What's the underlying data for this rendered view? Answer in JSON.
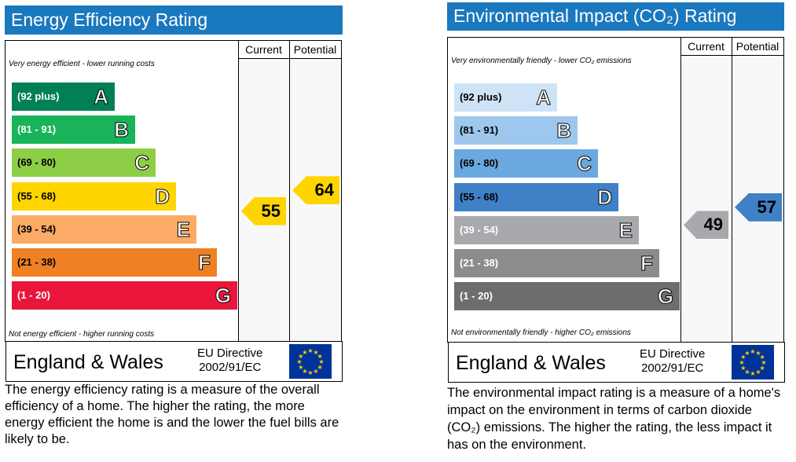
{
  "chart_data": [
    {
      "type": "bar",
      "title": "Energy Efficiency Rating",
      "column_headers": [
        "Current",
        "Potential"
      ],
      "top_note": "Very energy efficient - lower running costs",
      "bottom_note": "Not energy efficient - higher running costs",
      "bands": [
        {
          "range": "(92 plus)",
          "letter": "A",
          "color": "#008054"
        },
        {
          "range": "(81 - 91)",
          "letter": "B",
          "color": "#19b459"
        },
        {
          "range": "(69 - 80)",
          "letter": "C",
          "color": "#8dce46"
        },
        {
          "range": "(55 - 68)",
          "letter": "D",
          "color": "#ffd500"
        },
        {
          "range": "(39 - 54)",
          "letter": "E",
          "color": "#fcaa65"
        },
        {
          "range": "(21 - 38)",
          "letter": "F",
          "color": "#ef8023"
        },
        {
          "range": "(1 - 20)",
          "letter": "G",
          "color": "#e9153b"
        }
      ],
      "current": {
        "value": 55,
        "band": "D",
        "color": "#ffd500"
      },
      "potential": {
        "value": 64,
        "band": "D",
        "color": "#ffd500"
      },
      "footer": {
        "country": "England & Wales",
        "directive_line1": "EU Directive",
        "directive_line2": "2002/91/EC"
      },
      "description": "The energy efficiency rating is a measure of the overall efficiency of a home. The higher the rating, the more energy efficient the home is and the lower the fuel bills are likely to be."
    },
    {
      "type": "bar",
      "title": "Environmental Impact (CO₂) Rating",
      "column_headers": [
        "Current",
        "Potential"
      ],
      "top_note": "Very environmentally friendly - lower CO₂ emissions",
      "bottom_note": "Not environmentally friendly - higher CO₂ emissions",
      "bands": [
        {
          "range": "(92 plus)",
          "letter": "A",
          "color": "#cfe3f6"
        },
        {
          "range": "(81 - 91)",
          "letter": "B",
          "color": "#9ec7ee"
        },
        {
          "range": "(69 - 80)",
          "letter": "C",
          "color": "#6aa8e0"
        },
        {
          "range": "(55 - 68)",
          "letter": "D",
          "color": "#3f80c6"
        },
        {
          "range": "(39 - 54)",
          "letter": "E",
          "color": "#a7a9ac"
        },
        {
          "range": "(21 - 38)",
          "letter": "F",
          "color": "#8a8c8e"
        },
        {
          "range": "(1 - 20)",
          "letter": "G",
          "color": "#6b6d6f"
        }
      ],
      "current": {
        "value": 49,
        "band": "E",
        "color": "#a7a9ac"
      },
      "potential": {
        "value": 57,
        "band": "D",
        "color": "#3f80c6"
      },
      "footer": {
        "country": "England & Wales",
        "directive_line1": "EU Directive",
        "directive_line2": "2002/91/EC"
      },
      "description": "The environmental impact rating is a measure of a home's impact on the environment in terms of carbon dioxide (CO₂) emissions. The higher the rating, the less impact it has on the environment."
    }
  ],
  "colors": {
    "title_bar": "#1a78bf",
    "eu_flag": "#003399",
    "eu_stars": "#ffcc00"
  },
  "icons": {
    "eu_flag": "eu-flag-icon"
  }
}
